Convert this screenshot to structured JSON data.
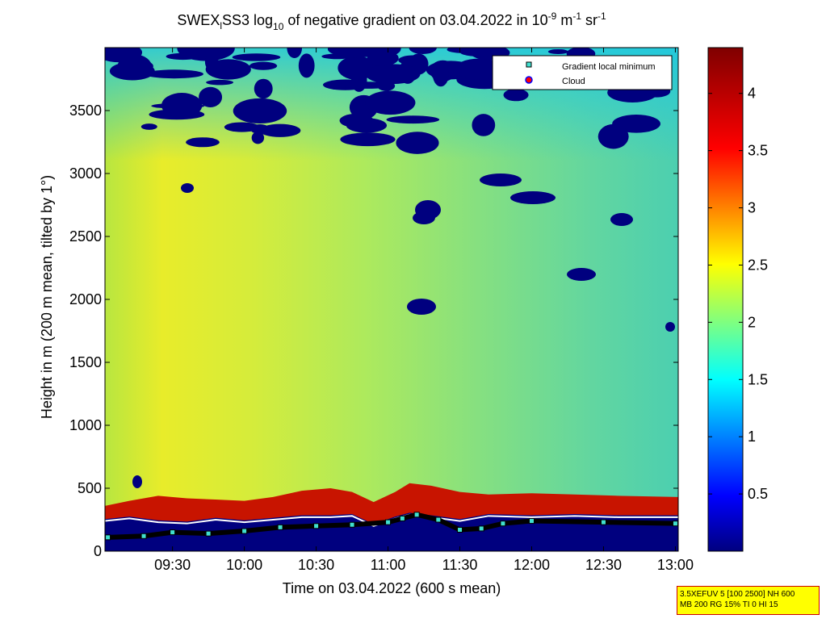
{
  "chart_data": {
    "type": "heatmap",
    "title": {
      "p1": "SWEX",
      "p1_sub": "l",
      "p2": "SS3 log",
      "p2_sub": "10",
      "p3": " of negative gradient on 03.04.2022 in 10",
      "p3_sup": "-9",
      "p4": " m",
      "p4_sup": "-1",
      "p5": " sr",
      "p5_sup": "-1"
    },
    "xlabel": "Time on 03.04.2022 (600 s mean)",
    "ylabel": "Height in m (200 m mean, tilted by 1°)",
    "x_ticks": [
      "09:30",
      "10:00",
      "10:30",
      "11:00",
      "11:30",
      "12:00",
      "12:30",
      "13:00"
    ],
    "x_tick_hours": [
      9.5,
      10,
      10.5,
      11,
      11.5,
      12,
      12.5,
      13
    ],
    "xlim_hours": [
      9.03,
      13.02
    ],
    "y_ticks": [
      0,
      500,
      1000,
      1500,
      2000,
      2500,
      3000,
      3500
    ],
    "ylim": [
      0,
      4000
    ],
    "colorbar": {
      "ticks": [
        0.5,
        1,
        1.5,
        2,
        2.5,
        3,
        3.5,
        4
      ],
      "tick_labels": [
        "0.5",
        "1",
        "1.5",
        "2",
        "2.5",
        "3",
        "3.5",
        "4"
      ],
      "range": [
        0,
        4.4
      ]
    },
    "legend": {
      "placement": "top-right",
      "entries": [
        {
          "label": "Gradient local minimum",
          "color": "#40e0d0"
        },
        {
          "label": "Cloud",
          "color": "#ff0000"
        }
      ]
    },
    "series": [
      {
        "name": "Gradient local minimum",
        "x": [
          9.05,
          9.3,
          9.5,
          9.75,
          10,
          10.25,
          10.5,
          10.75,
          11,
          11.1,
          11.2,
          11.35,
          11.5,
          11.65,
          11.8,
          12,
          12.5,
          13
        ],
        "y": [
          110,
          120,
          150,
          140,
          160,
          190,
          200,
          210,
          230,
          260,
          290,
          250,
          170,
          180,
          220,
          240,
          230,
          220
        ]
      }
    ],
    "bands": {
      "boundary_layer_top_x": [
        9.03,
        9.2,
        9.4,
        9.6,
        9.8,
        10,
        10.2,
        10.4,
        10.6,
        10.75,
        10.9,
        11.05,
        11.15,
        11.3,
        11.5,
        11.7,
        12,
        12.3,
        12.6,
        13.02
      ],
      "boundary_layer_top_y": [
        360,
        400,
        440,
        420,
        410,
        400,
        430,
        480,
        500,
        470,
        390,
        470,
        540,
        520,
        470,
        450,
        460,
        450,
        440,
        430
      ],
      "cloud_line_y": [
        240,
        260,
        230,
        220,
        250,
        230,
        250,
        270,
        270,
        280,
        200,
        260,
        290,
        270,
        240,
        280,
        270,
        280,
        270,
        270
      ]
    }
  },
  "info_box": {
    "line1": "3.5XEFUV 5 [100 2500] NH 600",
    "line2": "MB 200 RG 15% TI 0 HI 15"
  }
}
